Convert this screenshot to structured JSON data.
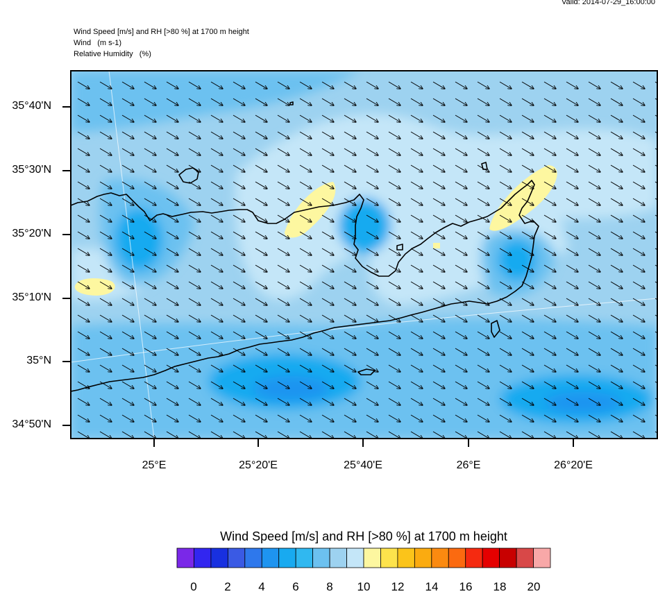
{
  "valid_time": "Valid: 2014-07-29_16:00:00",
  "header": {
    "line1": "Wind Speed [m/s] and RH [>80 %] at 1700 m height",
    "line2": "Wind   (m s-1)",
    "line3": "Relative Humidity   (%)"
  },
  "map": {
    "lat_labels": [
      "35°40'N",
      "35°30'N",
      "35°20'N",
      "35°10'N",
      "35°N",
      "34°50'N"
    ],
    "lon_labels": [
      "25°E",
      "25°20'E",
      "25°40'E",
      "26°E",
      "26°20'E"
    ],
    "wind_direction": "southeast",
    "field_colors": {
      "background": "#9dd2f0",
      "light": "#c4e6f8",
      "mid": "#6cc1f0",
      "strong": "#18aaf0",
      "stronger": "#1e94f0",
      "humid": "#fdf7a0"
    },
    "land_outline_color": "#000000"
  },
  "colorbar": {
    "title": "Wind Speed [m/s] and RH [>80 %] at 1700 m height",
    "colors": [
      "#7a28e8",
      "#3226f0",
      "#1830e0",
      "#3a5ae4",
      "#2e78ec",
      "#1e94f0",
      "#18aaf0",
      "#30b8f0",
      "#6cc1f0",
      "#9dd2f0",
      "#c4e6f8",
      "#fdf7a0",
      "#fde34c",
      "#fbc41a",
      "#fbab10",
      "#fb8a10",
      "#fb6a10",
      "#f52a10",
      "#e50000",
      "#c80000",
      "#d84848",
      "#f8a8a8"
    ],
    "ticks": [
      "0",
      "2",
      "4",
      "6",
      "8",
      "10",
      "12",
      "14",
      "16",
      "18",
      "20"
    ]
  }
}
